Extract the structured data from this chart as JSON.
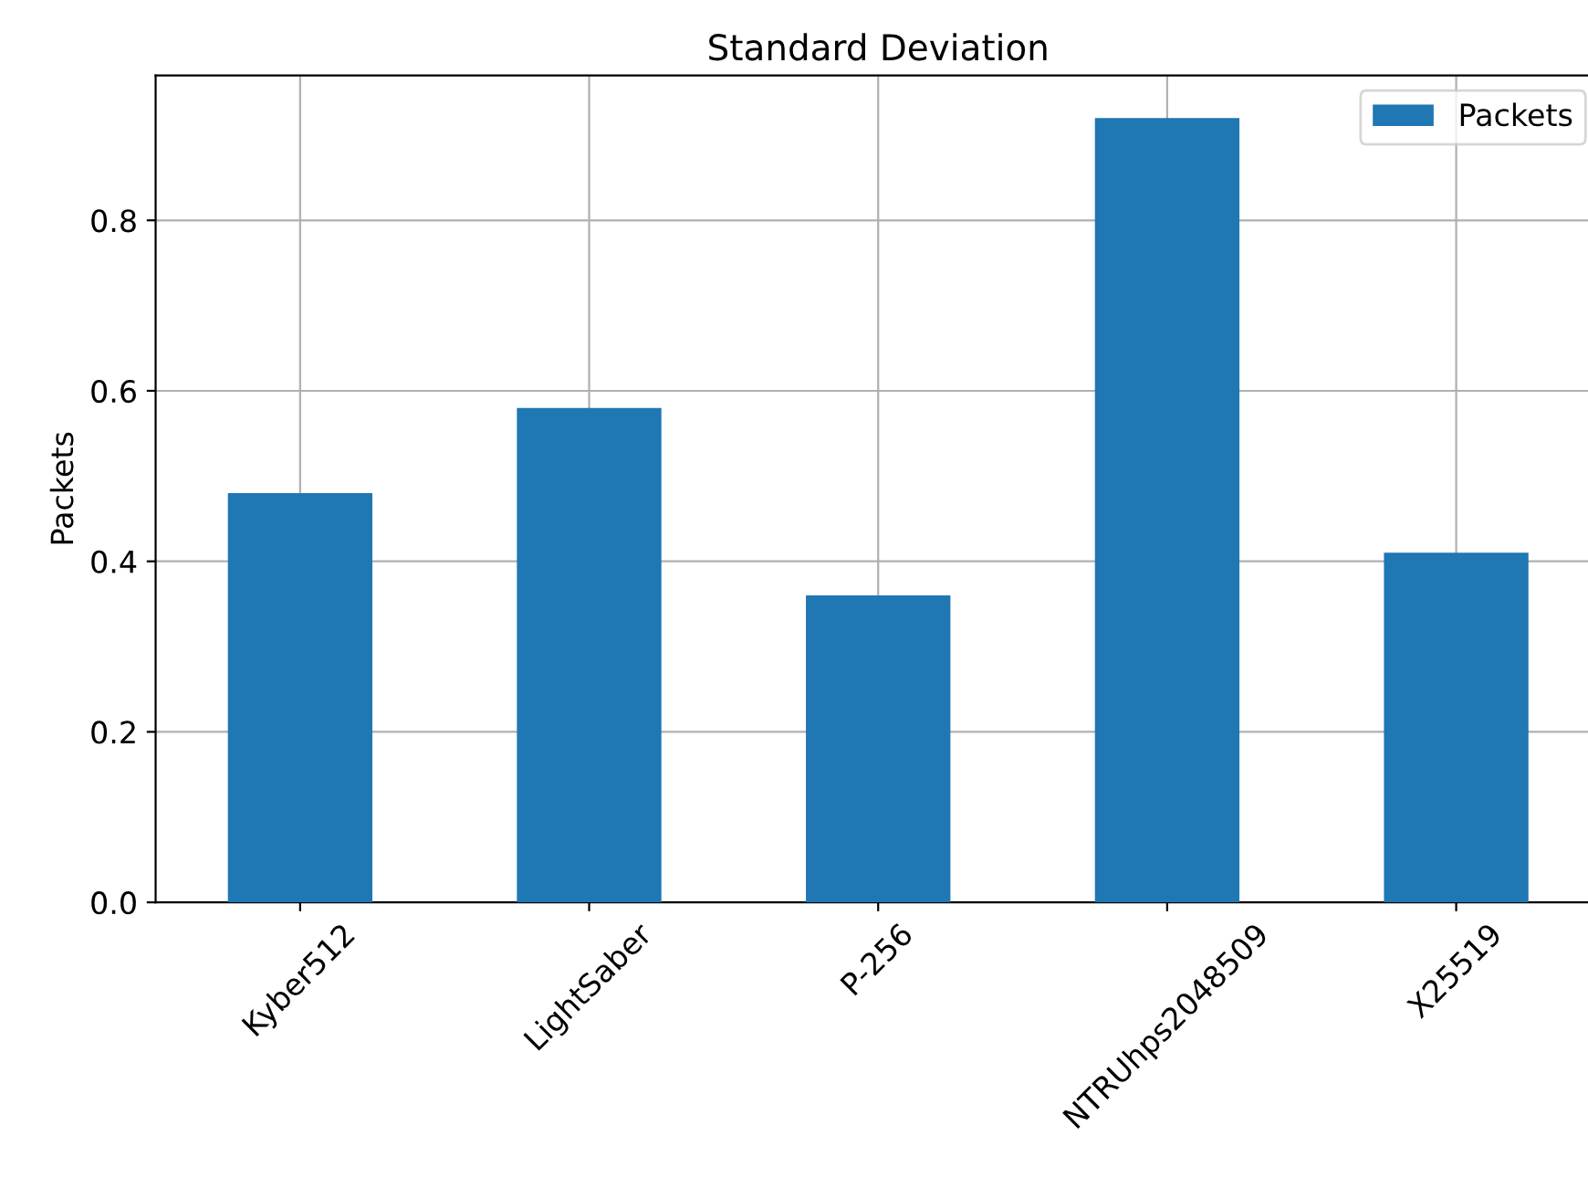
{
  "chart_data": {
    "type": "bar",
    "title": "Standard Deviation",
    "ylabel": "Packets",
    "categories": [
      "Kyber512",
      "LightSaber",
      "P-256",
      "NTRUhps2048509",
      "X25519"
    ],
    "series": [
      {
        "name": "Packets",
        "color": "#1f77b4",
        "values": [
          0.48,
          0.58,
          0.36,
          0.92,
          0.41
        ]
      }
    ],
    "ylim": [
      0,
      0.97
    ],
    "yticks": [
      {
        "value": 0,
        "label": "0.0"
      },
      {
        "value": 0.2,
        "label": "0.2"
      },
      {
        "value": 0.4,
        "label": "0.4"
      },
      {
        "value": 0.6,
        "label": "0.6"
      },
      {
        "value": 0.8,
        "label": "0.8"
      }
    ],
    "grid": true,
    "legend": "top right"
  }
}
